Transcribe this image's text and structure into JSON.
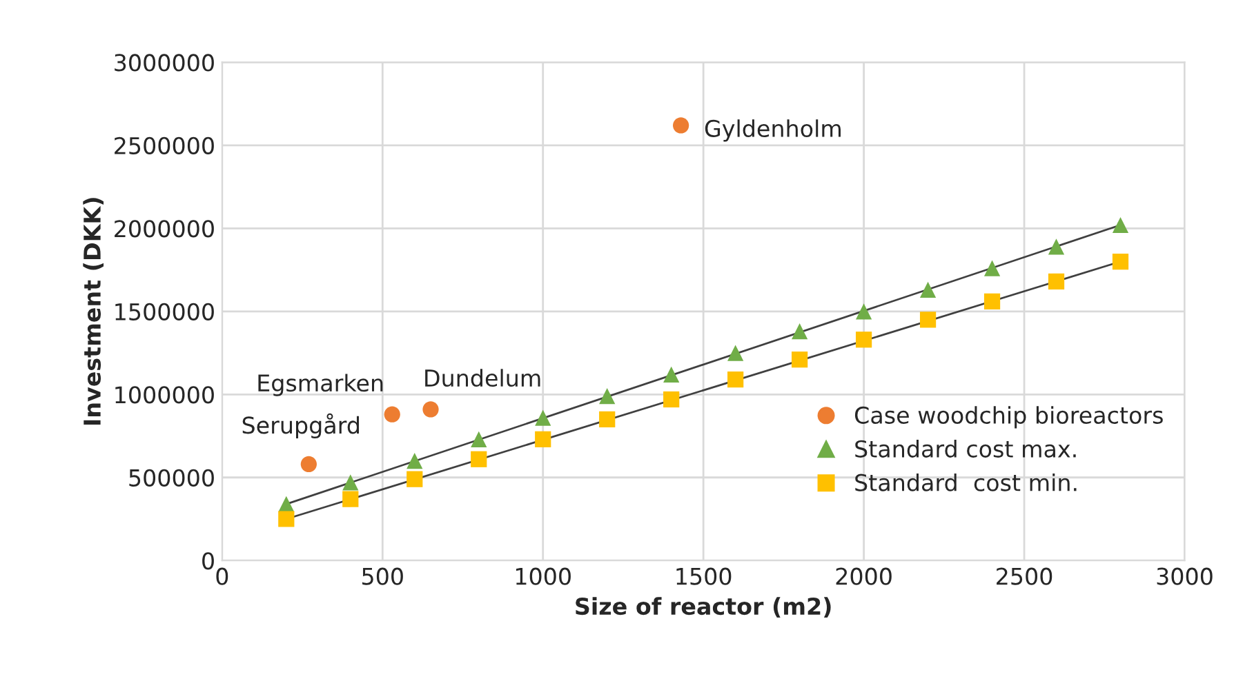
{
  "chart_data": {
    "type": "scatter",
    "xlabel": "Size of reactor (m2)",
    "ylabel": "Investment (DKK)",
    "xlim": [
      0,
      3000
    ],
    "xticks": [
      0,
      500,
      1000,
      1500,
      2000,
      2500,
      3000
    ],
    "ylim": [
      0,
      3000000
    ],
    "yticks": [
      0,
      500000,
      1000000,
      1500000,
      2000000,
      2500000,
      3000000
    ],
    "grid": true,
    "legend": "right",
    "series": [
      {
        "name": "Case woodchip bioreactors",
        "marker": "circle",
        "color": "#ed7d31",
        "x": [
          270,
          530,
          650,
          1430
        ],
        "values": [
          580000,
          880000,
          910000,
          2620000
        ]
      },
      {
        "name": "Standard cost max.",
        "marker": "triangle",
        "color": "#70ad47",
        "x": [
          200,
          400,
          600,
          800,
          1000,
          1200,
          1400,
          1600,
          1800,
          2000,
          2200,
          2400,
          2600,
          2800
        ],
        "values": [
          340000,
          470000,
          600000,
          730000,
          860000,
          990000,
          1120000,
          1250000,
          1380000,
          1500000,
          1630000,
          1760000,
          1890000,
          2020000
        ]
      },
      {
        "name": "Standard  cost min.",
        "marker": "square",
        "color": "#ffc000",
        "x": [
          200,
          400,
          600,
          800,
          1000,
          1200,
          1400,
          1600,
          1800,
          2000,
          2200,
          2400,
          2600,
          2800
        ],
        "values": [
          250000,
          370000,
          490000,
          610000,
          730000,
          850000,
          970000,
          1090000,
          1210000,
          1330000,
          1450000,
          1560000,
          1680000,
          1800000
        ]
      },
      {
        "type": "line",
        "color": "#404040",
        "x": [
          200,
          2800
        ],
        "values": [
          340000,
          2020000
        ]
      },
      {
        "type": "line",
        "color": "#404040",
        "x": [
          200,
          2800
        ],
        "values": [
          250000,
          1800000
        ]
      }
    ],
    "annotations": [
      {
        "text": "Serupgård",
        "x": 270,
        "y": 580000
      },
      {
        "text": "Egsmarken",
        "x": 530,
        "y": 880000
      },
      {
        "text": "Dundelum",
        "x": 650,
        "y": 910000
      },
      {
        "text": "Gyldenholm",
        "x": 1430,
        "y": 2620000
      }
    ]
  }
}
